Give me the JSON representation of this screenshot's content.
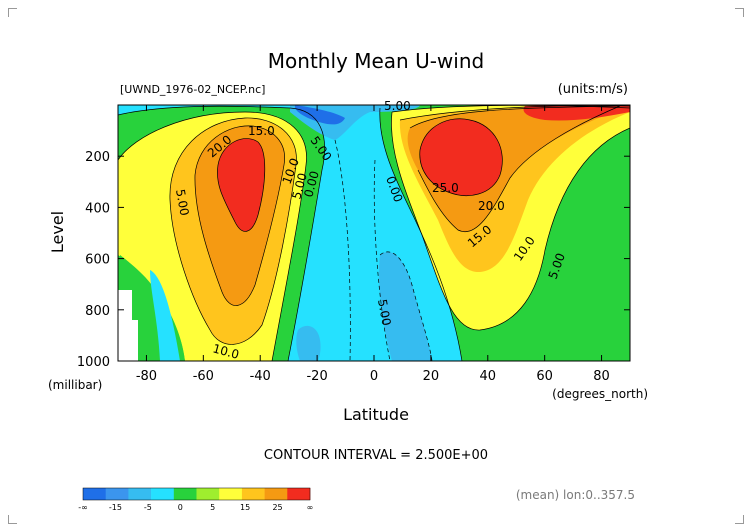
{
  "chart_data": {
    "type": "filled-contour",
    "title": "Monthly Mean U-wind",
    "file_label": "[UWND_1976-02_NCEP.nc]",
    "units_label": "(units:m/s)",
    "xlabel": "Latitude",
    "xlabel_units": "(degrees_north)",
    "ylabel": "Level",
    "ylabel_units": "(millibar)",
    "x_ticks": [
      "-80",
      "-60",
      "-40",
      "-20",
      "0",
      "20",
      "40",
      "60",
      "80"
    ],
    "y_ticks": [
      "200",
      "400",
      "600",
      "800",
      "1000"
    ],
    "xlim": [
      -90,
      90
    ],
    "ylim": [
      1000,
      0
    ],
    "contour_interval_text": "CONTOUR INTERVAL = 2.500E+00",
    "footer_text": "(mean) lon:0..357.5",
    "contour_labels": [
      "5.00",
      "15.0",
      "20.0",
      "5.00",
      "10.0",
      "5.00",
      "0.00",
      "5.00",
      "0.00",
      "25.0",
      "20.0",
      "15.0",
      "10.0",
      "5.00",
      "5.00",
      "10.0"
    ],
    "jets": [
      {
        "lat": -50,
        "level": 270,
        "max": 27.5
      },
      {
        "lat": 28,
        "level": 200,
        "max": 32.5
      }
    ],
    "colorbar": {
      "tick_labels": [
        "-∞",
        "-15",
        "-5",
        "0",
        "5",
        "15",
        "25",
        "∞"
      ],
      "colors": [
        "#1f6fe8",
        "#3b95ee",
        "#36bcf0",
        "#25e1ff",
        "#28d23c",
        "#9fee2e",
        "#ffff3a",
        "#ffc51d",
        "#f59a12",
        "#f22c1f"
      ]
    }
  }
}
